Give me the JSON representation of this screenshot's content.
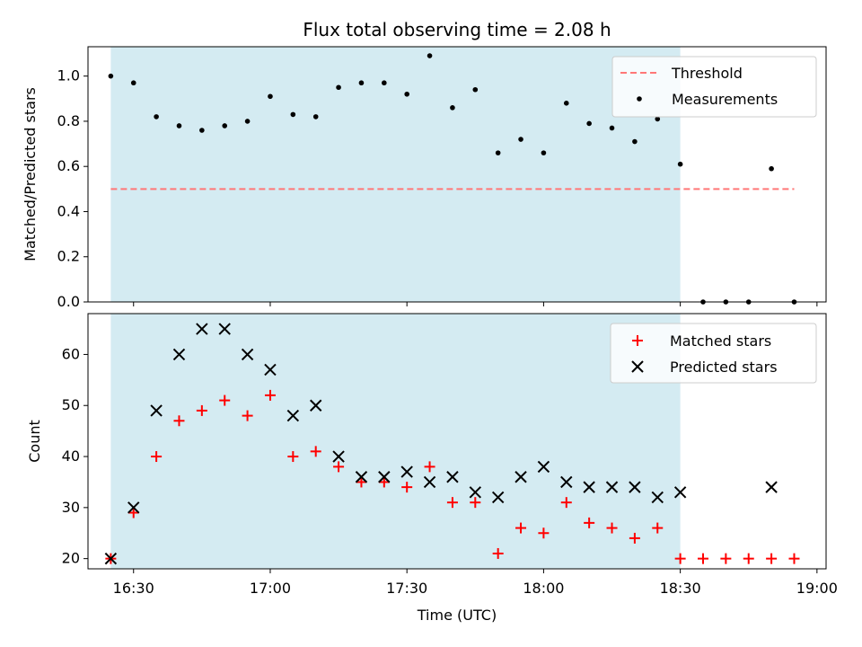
{
  "chart_data": [
    {
      "type": "scatter",
      "title": "Flux total observing time = 2.08 h",
      "ylabel": "Matched/Predicted stars",
      "ylim": [
        0,
        1.13
      ],
      "yticks": [
        0.0,
        0.2,
        0.4,
        0.6,
        0.8,
        1.0
      ],
      "ytick_labels": [
        "0.0",
        "0.2",
        "0.4",
        "0.6",
        "0.8",
        "1.0"
      ],
      "shaded_span": [
        "16:25",
        "18:30"
      ],
      "shade_color": "#d4ebf2",
      "threshold": {
        "name": "Threshold",
        "value": 0.5,
        "x_start": "16:25",
        "x_end": "18:55",
        "color": "#ff7777",
        "style": "dashed"
      },
      "legend": {
        "position": "top-right",
        "entries": [
          "Threshold",
          "Measurements"
        ]
      },
      "series": [
        {
          "name": "Measurements",
          "marker": "dot",
          "color": "#000000",
          "x": [
            "16:25",
            "16:30",
            "16:35",
            "16:40",
            "16:45",
            "16:50",
            "16:55",
            "17:00",
            "17:05",
            "17:10",
            "17:15",
            "17:20",
            "17:25",
            "17:30",
            "17:35",
            "17:40",
            "17:45",
            "17:50",
            "17:55",
            "18:00",
            "18:05",
            "18:10",
            "18:15",
            "18:20",
            "18:25",
            "18:30",
            "18:35",
            "18:40",
            "18:45",
            "18:50",
            "18:55"
          ],
          "values": [
            1.0,
            0.97,
            0.82,
            0.78,
            0.76,
            0.78,
            0.8,
            0.91,
            0.83,
            0.82,
            0.95,
            0.97,
            0.97,
            0.92,
            1.09,
            0.86,
            0.94,
            0.66,
            0.72,
            0.66,
            0.88,
            0.79,
            0.77,
            0.71,
            0.81,
            0.61,
            0.0,
            0.0,
            0.0,
            0.59,
            0.0
          ]
        }
      ]
    },
    {
      "type": "scatter",
      "xlabel": "Time (UTC)",
      "ylabel": "Count",
      "ylim": [
        18,
        68
      ],
      "yticks": [
        20,
        30,
        40,
        50,
        60
      ],
      "ytick_labels": [
        "20",
        "30",
        "40",
        "50",
        "60"
      ],
      "xlim": [
        "16:20",
        "19:02"
      ],
      "xticks": [
        "16:30",
        "17:00",
        "17:30",
        "18:00",
        "18:30",
        "19:00"
      ],
      "xtick_labels": [
        "16:30",
        "17:00",
        "17:30",
        "18:00",
        "18:30",
        "19:00"
      ],
      "shaded_span": [
        "16:25",
        "18:30"
      ],
      "shade_color": "#d4ebf2",
      "legend": {
        "position": "top-right",
        "entries": [
          "Matched stars",
          "Predicted stars"
        ]
      },
      "series": [
        {
          "name": "Matched stars",
          "marker": "plus",
          "color": "#ff0000",
          "x": [
            "16:25",
            "16:30",
            "16:35",
            "16:40",
            "16:45",
            "16:50",
            "16:55",
            "17:00",
            "17:05",
            "17:10",
            "17:15",
            "17:20",
            "17:25",
            "17:30",
            "17:35",
            "17:40",
            "17:45",
            "17:50",
            "17:55",
            "18:00",
            "18:05",
            "18:10",
            "18:15",
            "18:20",
            "18:25",
            "18:30",
            "18:35",
            "18:40",
            "18:45",
            "18:50",
            "18:55"
          ],
          "values": [
            20,
            29,
            40,
            47,
            49,
            51,
            48,
            52,
            40,
            41,
            38,
            35,
            35,
            34,
            38,
            31,
            31,
            21,
            26,
            25,
            31,
            27,
            26,
            24,
            26,
            20,
            20,
            20,
            20,
            20,
            20
          ]
        },
        {
          "name": "Predicted stars",
          "marker": "x",
          "color": "#000000",
          "x": [
            "16:25",
            "16:30",
            "16:35",
            "16:40",
            "16:45",
            "16:50",
            "16:55",
            "17:00",
            "17:05",
            "17:10",
            "17:15",
            "17:20",
            "17:25",
            "17:30",
            "17:35",
            "17:40",
            "17:45",
            "17:50",
            "17:55",
            "18:00",
            "18:05",
            "18:10",
            "18:15",
            "18:20",
            "18:25",
            "18:30",
            "18:50"
          ],
          "values": [
            20,
            30,
            49,
            60,
            65,
            65,
            60,
            57,
            48,
            50,
            40,
            36,
            36,
            37,
            35,
            36,
            33,
            32,
            36,
            38,
            35,
            34,
            34,
            34,
            32,
            33,
            34
          ]
        }
      ]
    }
  ]
}
